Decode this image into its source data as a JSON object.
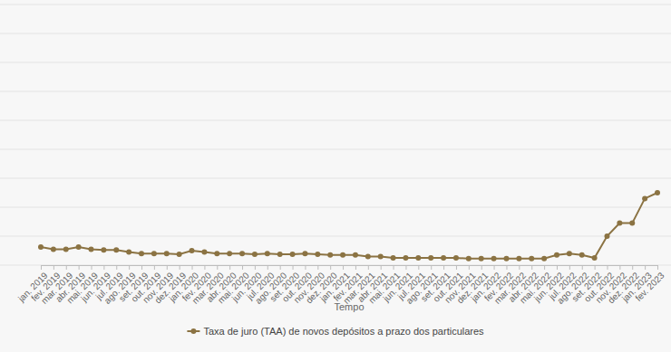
{
  "chart_data": {
    "type": "line",
    "x_label": "Tempo",
    "categories": [
      "jan. 2019",
      "fev. 2019",
      "mar. 2019",
      "abr. 2019",
      "mai. 2019",
      "jun. 2019",
      "jul. 2019",
      "ago. 2019",
      "set. 2019",
      "out. 2019",
      "nov. 2019",
      "dez. 2019",
      "jan. 2020",
      "fev. 2020",
      "mar. 2020",
      "abr. 2020",
      "mai. 2020",
      "jun. 2020",
      "jul. 2020",
      "ago. 2020",
      "set. 2020",
      "out. 2020",
      "nov. 2020",
      "dez. 2020",
      "jan. 2021",
      "fev. 2021",
      "mar. 2021",
      "abr. 2021",
      "mai. 2021",
      "jun. 2021",
      "jul. 2021",
      "ago. 2021",
      "set. 2021",
      "out. 2021",
      "nov. 2021",
      "dez. 2021",
      "jan. 2022",
      "fev. 2022",
      "mar. 2022",
      "abr. 2022",
      "mai. 2022",
      "jun. 2022",
      "jul. 2022",
      "ago. 2022",
      "set. 2022",
      "out. 2022",
      "nov. 2022",
      "dez. 2022",
      "jan. 2023",
      "fev. 2023"
    ],
    "series": [
      {
        "name": "Taxa de juro (TAA) de novos depósitos a prazo dos particulares",
        "color": "#8b7343",
        "marker": "circle",
        "values": [
          0.125,
          0.11,
          0.11,
          0.125,
          0.11,
          0.105,
          0.105,
          0.09,
          0.08,
          0.08,
          0.08,
          0.075,
          0.1,
          0.09,
          0.08,
          0.08,
          0.08,
          0.075,
          0.08,
          0.075,
          0.075,
          0.08,
          0.075,
          0.07,
          0.07,
          0.07,
          0.06,
          0.06,
          0.05,
          0.05,
          0.05,
          0.05,
          0.05,
          0.05,
          0.045,
          0.045,
          0.045,
          0.045,
          0.045,
          0.045,
          0.045,
          0.07,
          0.08,
          0.07,
          0.05,
          0.2,
          0.29,
          0.29,
          0.46,
          0.5
        ]
      }
    ],
    "ylim": [
      0,
      1.8
    ],
    "yticks": [
      0,
      0.2,
      0.4,
      0.6,
      0.8,
      1,
      1.2,
      1.4,
      1.6,
      1.8
    ],
    "grid": true,
    "tick_labels": "x",
    "legend": "bottom"
  }
}
